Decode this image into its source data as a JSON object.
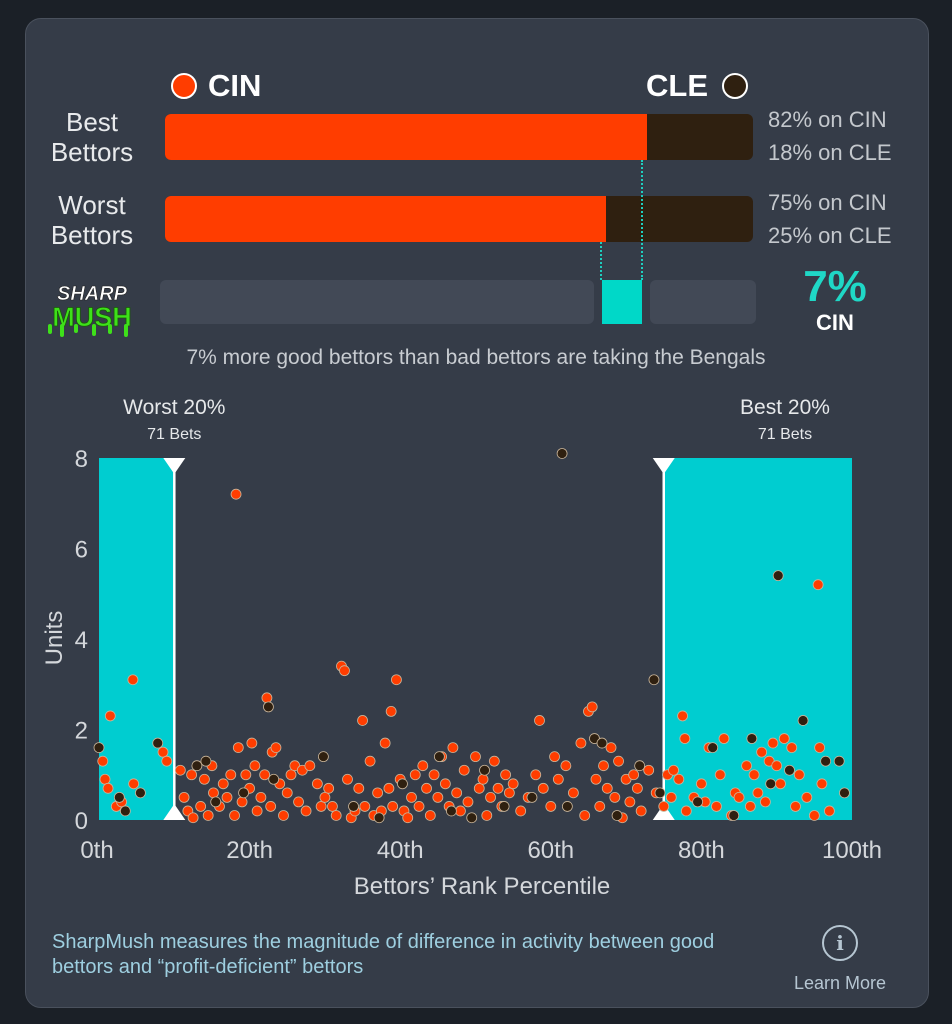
{
  "teams": {
    "left": "CIN",
    "right": "CLE",
    "left_color": "#ff3d00",
    "right_color": "#2f2010"
  },
  "rows": [
    {
      "label": "Best Bettors",
      "left_pct": 82,
      "left_text": "82% on CIN",
      "right_text": "18% on CLE"
    },
    {
      "label": "Worst Bettors",
      "left_pct": 75,
      "left_text": "75% on CIN",
      "right_text": "25% on CLE"
    }
  ],
  "sharp": {
    "value": 7,
    "value_text": "7%",
    "team": "CIN",
    "logo_top": "SHARP",
    "logo_bottom": "MUSH"
  },
  "caption": "7% more good bettors than bad bettors are taking the Bengals",
  "chart_data": {
    "type": "scatter",
    "xlabel": "Bettors’ Rank Percentile",
    "ylabel": "Units",
    "xlim": [
      0,
      100
    ],
    "ylim": [
      0,
      8
    ],
    "x_ticks": [
      0,
      20,
      40,
      60,
      80,
      100
    ],
    "x_tick_labels": [
      "0th",
      "20th",
      "40th",
      "60th",
      "80th",
      "100th"
    ],
    "y_ticks": [
      0,
      2,
      4,
      6,
      8
    ],
    "y_tick_labels": [
      "0",
      "2",
      "4",
      "6",
      "8"
    ],
    "highlight_worst": {
      "label": "Worst 20%",
      "sub": "71 Bets",
      "x_start": 0,
      "x_end": 10
    },
    "highlight_best": {
      "label": "Best 20%",
      "sub": "71 Bets",
      "x_start": 75,
      "x_end": 100
    },
    "series": [
      {
        "name": "CIN",
        "color": "#ff3d00",
        "points": [
          [
            0.5,
            1.3
          ],
          [
            0.8,
            0.9
          ],
          [
            1.2,
            0.7
          ],
          [
            1.5,
            2.3
          ],
          [
            2.3,
            0.3
          ],
          [
            3,
            0.4
          ],
          [
            4.5,
            3.1
          ],
          [
            4.6,
            0.8
          ],
          [
            8.5,
            1.5
          ],
          [
            9,
            1.3
          ],
          [
            10.8,
            1.1
          ],
          [
            11.3,
            0.5
          ],
          [
            11.8,
            0.2
          ],
          [
            12.3,
            1.0
          ],
          [
            12.5,
            0.05
          ],
          [
            13.5,
            0.3
          ],
          [
            14,
            0.9
          ],
          [
            14.5,
            0.1
          ],
          [
            15,
            1.2
          ],
          [
            15.2,
            0.6
          ],
          [
            16,
            0.3
          ],
          [
            16.5,
            0.8
          ],
          [
            17,
            0.5
          ],
          [
            17.5,
            1.0
          ],
          [
            18,
            0.1
          ],
          [
            18.2,
            7.2
          ],
          [
            18.5,
            1.6
          ],
          [
            19,
            0.4
          ],
          [
            19.5,
            1.0
          ],
          [
            20,
            0.7
          ],
          [
            20.3,
            1.7
          ],
          [
            20.7,
            1.2
          ],
          [
            21,
            0.2
          ],
          [
            21.5,
            0.5
          ],
          [
            22,
            1.0
          ],
          [
            22.3,
            2.7
          ],
          [
            22.8,
            0.3
          ],
          [
            23,
            1.5
          ],
          [
            23.5,
            1.6
          ],
          [
            24,
            0.8
          ],
          [
            24.5,
            0.1
          ],
          [
            25,
            0.6
          ],
          [
            25.5,
            1.0
          ],
          [
            26,
            1.2
          ],
          [
            26.5,
            0.4
          ],
          [
            27,
            1.1
          ],
          [
            27.5,
            0.2
          ],
          [
            28,
            1.2
          ],
          [
            29,
            0.8
          ],
          [
            29.5,
            0.3
          ],
          [
            30,
            0.5
          ],
          [
            30.5,
            0.7
          ],
          [
            31,
            0.3
          ],
          [
            31.5,
            0.1
          ],
          [
            32.2,
            3.4
          ],
          [
            32.6,
            3.3
          ],
          [
            33,
            0.9
          ],
          [
            33.5,
            0.05
          ],
          [
            34,
            0.2
          ],
          [
            34.5,
            0.7
          ],
          [
            35,
            2.2
          ],
          [
            35.3,
            0.3
          ],
          [
            36,
            1.3
          ],
          [
            36.5,
            0.1
          ],
          [
            37,
            0.6
          ],
          [
            37.5,
            0.2
          ],
          [
            38,
            1.7
          ],
          [
            38.5,
            0.7
          ],
          [
            38.8,
            2.4
          ],
          [
            39,
            0.3
          ],
          [
            39.5,
            3.1
          ],
          [
            40,
            0.9
          ],
          [
            40.5,
            0.2
          ],
          [
            41,
            0.05
          ],
          [
            41.5,
            0.5
          ],
          [
            42,
            1.0
          ],
          [
            42.5,
            0.3
          ],
          [
            43,
            1.2
          ],
          [
            43.5,
            0.7
          ],
          [
            44,
            0.1
          ],
          [
            44.5,
            1.0
          ],
          [
            45,
            0.5
          ],
          [
            45.5,
            1.4
          ],
          [
            46,
            0.8
          ],
          [
            46.5,
            0.3
          ],
          [
            47,
            1.6
          ],
          [
            47.5,
            0.6
          ],
          [
            48,
            0.2
          ],
          [
            48.5,
            1.1
          ],
          [
            49,
            0.4
          ],
          [
            50,
            1.4
          ],
          [
            50.5,
            0.7
          ],
          [
            51,
            0.9
          ],
          [
            51.5,
            0.1
          ],
          [
            52,
            0.5
          ],
          [
            52.5,
            1.3
          ],
          [
            53,
            0.7
          ],
          [
            53.5,
            0.3
          ],
          [
            54,
            1.0
          ],
          [
            54.5,
            0.6
          ],
          [
            55,
            0.8
          ],
          [
            56,
            0.2
          ],
          [
            57,
            0.5
          ],
          [
            58,
            1.0
          ],
          [
            58.5,
            2.2
          ],
          [
            59,
            0.7
          ],
          [
            60,
            0.3
          ],
          [
            60.5,
            1.4
          ],
          [
            61,
            0.9
          ],
          [
            62,
            1.2
          ],
          [
            63,
            0.6
          ],
          [
            64,
            1.7
          ],
          [
            64.5,
            0.1
          ],
          [
            65,
            2.4
          ],
          [
            65.5,
            2.5
          ],
          [
            66,
            0.9
          ],
          [
            66.5,
            0.3
          ],
          [
            67,
            1.2
          ],
          [
            67.5,
            0.7
          ],
          [
            68,
            1.6
          ],
          [
            68.5,
            0.5
          ],
          [
            69,
            1.3
          ],
          [
            69.5,
            0.05
          ],
          [
            70,
            0.9
          ],
          [
            70.5,
            0.4
          ],
          [
            71,
            1.0
          ],
          [
            71.5,
            0.7
          ],
          [
            72,
            0.2
          ],
          [
            73,
            1.1
          ],
          [
            74,
            0.6
          ],
          [
            75,
            0.3
          ],
          [
            75.5,
            1.0
          ],
          [
            76,
            0.5
          ],
          [
            76.3,
            1.1
          ],
          [
            77,
            0.9
          ],
          [
            77.5,
            2.3
          ],
          [
            77.8,
            1.8
          ],
          [
            78,
            0.2
          ],
          [
            79,
            0.5
          ],
          [
            80,
            0.8
          ],
          [
            80.5,
            0.4
          ],
          [
            81,
            1.6
          ],
          [
            82,
            0.3
          ],
          [
            82.5,
            1.0
          ],
          [
            83,
            1.8
          ],
          [
            84,
            0.1
          ],
          [
            84.5,
            0.6
          ],
          [
            85,
            0.5
          ],
          [
            86,
            1.2
          ],
          [
            86.5,
            0.3
          ],
          [
            87,
            1.0
          ],
          [
            87.5,
            0.6
          ],
          [
            88,
            1.5
          ],
          [
            88.5,
            0.4
          ],
          [
            89,
            1.3
          ],
          [
            89.5,
            1.7
          ],
          [
            90,
            1.2
          ],
          [
            90.5,
            0.8
          ],
          [
            91,
            1.8
          ],
          [
            92,
            1.6
          ],
          [
            92.5,
            0.3
          ],
          [
            93,
            1.0
          ],
          [
            94,
            0.5
          ],
          [
            95,
            0.1
          ],
          [
            95.5,
            5.2
          ],
          [
            95.7,
            1.6
          ],
          [
            96,
            0.8
          ],
          [
            97,
            0.2
          ]
        ]
      },
      {
        "name": "CLE",
        "color": "#2f2010",
        "points": [
          [
            0,
            1.6
          ],
          [
            2.7,
            0.5
          ],
          [
            3.5,
            0.2
          ],
          [
            5.5,
            0.6
          ],
          [
            7.8,
            1.7
          ],
          [
            13,
            1.2
          ],
          [
            14.2,
            1.3
          ],
          [
            15.5,
            0.4
          ],
          [
            19.2,
            0.6
          ],
          [
            22.5,
            2.5
          ],
          [
            23.2,
            0.9
          ],
          [
            29.8,
            1.4
          ],
          [
            33.8,
            0.3
          ],
          [
            37.2,
            0.05
          ],
          [
            40.3,
            0.8
          ],
          [
            45.2,
            1.4
          ],
          [
            46.8,
            0.2
          ],
          [
            49.5,
            0.05
          ],
          [
            51.2,
            1.1
          ],
          [
            53.8,
            0.3
          ],
          [
            57.5,
            0.5
          ],
          [
            61.5,
            8.1
          ],
          [
            62.2,
            0.3
          ],
          [
            65.8,
            1.8
          ],
          [
            66.8,
            1.7
          ],
          [
            68.8,
            0.1
          ],
          [
            71.8,
            1.2
          ],
          [
            73.7,
            3.1
          ],
          [
            74.5,
            0.6
          ],
          [
            79.5,
            0.4
          ],
          [
            81.5,
            1.6
          ],
          [
            84.3,
            0.1
          ],
          [
            86.7,
            1.8
          ],
          [
            89.2,
            0.8
          ],
          [
            90.2,
            5.4
          ],
          [
            91.7,
            1.1
          ],
          [
            93.5,
            2.2
          ],
          [
            96.5,
            1.3
          ],
          [
            98.3,
            1.3
          ],
          [
            99,
            0.6
          ]
        ]
      }
    ]
  },
  "footer": "SharpMush measures the magnitude of difference in activity between good bettors and “profit-deficient” bettors",
  "learn_more": {
    "icon": "info-icon",
    "label": "Learn More"
  }
}
